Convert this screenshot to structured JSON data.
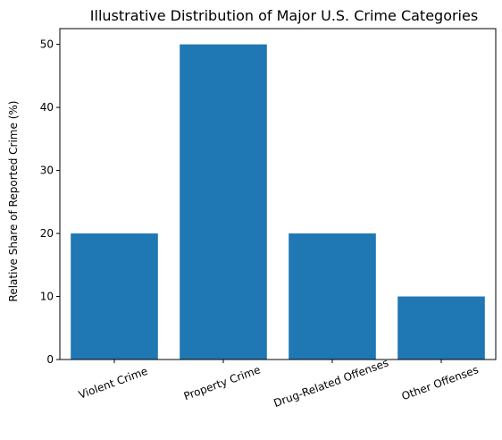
{
  "chart_data": {
    "type": "bar",
    "title": "Illustrative Distribution of Major U.S. Crime Categories",
    "xlabel": "",
    "ylabel": "Relative Share of Reported Crime (%)",
    "categories": [
      "Violent Crime",
      "Property Crime",
      "Drug-Related Offenses",
      "Other Offenses"
    ],
    "values": [
      20,
      50,
      20,
      10
    ],
    "ylim": [
      0,
      52.5
    ],
    "yticks": [
      0,
      10,
      20,
      30,
      40,
      50
    ],
    "x_tick_rotation_deg": -20,
    "grid": false,
    "legend": "none",
    "bar_color": "#1f77b4"
  }
}
